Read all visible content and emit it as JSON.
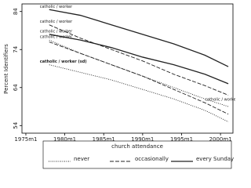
{
  "chart_data": {
    "type": "line",
    "y_label": "Percent Identifiers",
    "x": [
      1978,
      1982,
      1986,
      1990,
      1994,
      1998,
      2001
    ],
    "xlim": [
      1974.5,
      2001.6
    ],
    "xticks": [
      {
        "value": 1975,
        "label": "1975m1"
      },
      {
        "value": 1980,
        "label": "1980m1"
      },
      {
        "value": 1985,
        "label": "1985m1"
      },
      {
        "value": 1990,
        "label": "1990m1"
      },
      {
        "value": 1995,
        "label": "1995m1"
      },
      {
        "value": 2000,
        "label": "2000m1"
      }
    ],
    "ylim": [
      52,
      86
    ],
    "yticks": [
      54,
      64,
      74,
      84
    ],
    "series": [
      {
        "label": "catholic / worker",
        "label_at": "start",
        "style": "solid",
        "values": [
          84.5,
          83,
          80.5,
          78,
          75.5,
          72.5,
          69.5
        ]
      },
      {
        "label": "catholic / worker",
        "label_at": "start",
        "style": "solid",
        "values": [
          78,
          76.5,
          74.5,
          72,
          70,
          67.5,
          65
        ]
      },
      {
        "label": "catholic / worker",
        "label_at": "start",
        "style": "dashed",
        "values": [
          80.5,
          77,
          74,
          71,
          67.5,
          64.5,
          62
        ]
      },
      {
        "label": "catholic / worker",
        "label_at": "end",
        "style": "dashed",
        "values": [
          76,
          73,
          70,
          67,
          63.5,
          60,
          57
        ]
      },
      {
        "label": "catholic / worker",
        "label_at": "start",
        "style": "dotted",
        "values": [
          76.5,
          73,
          70,
          67,
          64,
          61,
          59
        ]
      },
      {
        "label": "catholic / worker (sd)",
        "label_at": "start",
        "style": "dotted",
        "values": [
          70,
          68,
          66,
          63.5,
          61,
          58,
          55
        ]
      }
    ],
    "legend": {
      "title": "church attendance",
      "entries": [
        {
          "name": "never",
          "style": "dotted"
        },
        {
          "name": "occasionally",
          "style": "dashed"
        },
        {
          "name": "every Sunday",
          "style": "solid"
        }
      ]
    }
  }
}
